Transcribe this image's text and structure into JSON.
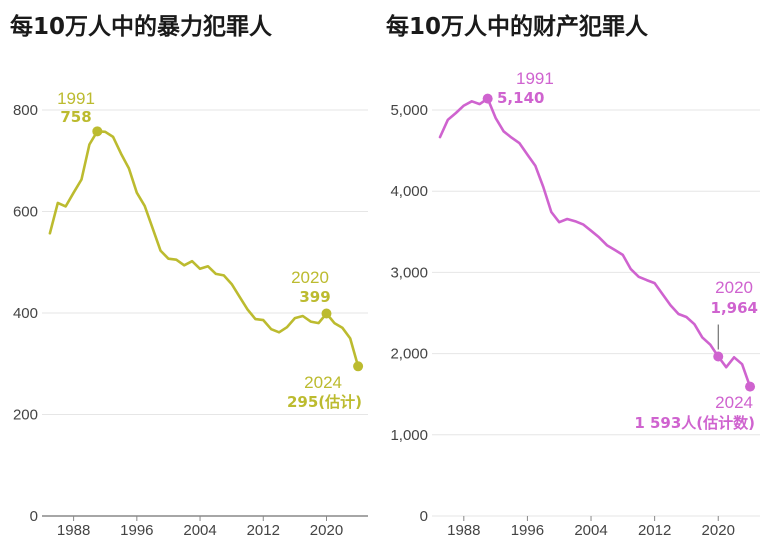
{
  "chart_data": [
    {
      "type": "line",
      "title": "每10万人中的暴力犯罪人",
      "color": "#bcbb2f",
      "x_ticks": [
        1988,
        1996,
        2004,
        2012,
        2020
      ],
      "y_ticks": [
        0,
        200,
        400,
        600,
        800
      ],
      "y_tick_labels": [
        "0",
        "200",
        "400",
        "600",
        "800"
      ],
      "xlim": [
        1984,
        2025
      ],
      "ylim": [
        0,
        800
      ],
      "grid": true,
      "series": [
        {
          "x": [
            1985,
            1986,
            1987,
            1988,
            1989,
            1990,
            1991,
            1992,
            1993,
            1994,
            1995,
            1996,
            1997,
            1998,
            1999,
            2000,
            2001,
            2002,
            2003,
            2004,
            2005,
            2006,
            2007,
            2008,
            2009,
            2010,
            2011,
            2012,
            2013,
            2014,
            2015,
            2016,
            2017,
            2018,
            2019,
            2020,
            2021,
            2022,
            2023,
            2024
          ],
          "y": [
            557,
            617,
            610,
            637,
            663,
            732,
            758,
            757,
            747,
            714,
            685,
            637,
            611,
            567,
            523,
            507,
            505,
            494,
            502,
            487,
            492,
            477,
            474,
            457,
            432,
            407,
            388,
            386,
            368,
            362,
            372,
            390,
            394,
            383,
            380,
            399,
            380,
            371,
            350,
            295
          ]
        }
      ],
      "annotations": [
        {
          "year_label": "1991",
          "value_label": "758",
          "x": 1991,
          "y": 758
        },
        {
          "year_label": "2020",
          "value_label": "399",
          "x": 2020,
          "y": 399
        },
        {
          "year_label": "2024",
          "value_label": "295(估计)",
          "x": 2024,
          "y": 295
        }
      ]
    },
    {
      "type": "line",
      "title": "每10万人中的财产犯罪人",
      "color": "#cf63cf",
      "x_ticks": [
        1988,
        1996,
        2004,
        2012,
        2020
      ],
      "y_ticks": [
        0,
        1000,
        2000,
        3000,
        4000,
        5000
      ],
      "y_tick_labels": [
        "0",
        "1,000",
        "2,000",
        "3,000",
        "4,000",
        "5,000"
      ],
      "xlim": [
        1984,
        2025
      ],
      "ylim": [
        0,
        5000
      ],
      "grid": true,
      "series": [
        {
          "x": [
            1985,
            1986,
            1987,
            1988,
            1989,
            1990,
            1991,
            1992,
            1993,
            1994,
            1995,
            1996,
            1997,
            1998,
            1999,
            2000,
            2001,
            2002,
            2003,
            2004,
            2005,
            2006,
            2007,
            2008,
            2009,
            2010,
            2011,
            2012,
            2013,
            2014,
            2015,
            2016,
            2017,
            2018,
            2019,
            2020,
            2021,
            2022,
            2023,
            2024
          ],
          "y": [
            4666,
            4881,
            4963,
            5054,
            5107,
            5073,
            5140,
            4903,
            4738,
            4660,
            4591,
            4451,
            4312,
            4052,
            3744,
            3618,
            3658,
            3630,
            3591,
            3514,
            3432,
            3335,
            3276,
            3215,
            3041,
            2946,
            2905,
            2868,
            2731,
            2596,
            2488,
            2451,
            2362,
            2200,
            2110,
            1964,
            1832,
            1954,
            1870,
            1593
          ]
        }
      ],
      "annotations": [
        {
          "year_label": "1991",
          "value_label": "5,140",
          "x": 1991,
          "y": 5140
        },
        {
          "year_label": "2020",
          "value_label": "1,964",
          "x": 2020,
          "y": 1964
        },
        {
          "year_label": "2024",
          "value_label": "1 593人(估计数)",
          "x": 2024,
          "y": 1593
        }
      ]
    }
  ]
}
